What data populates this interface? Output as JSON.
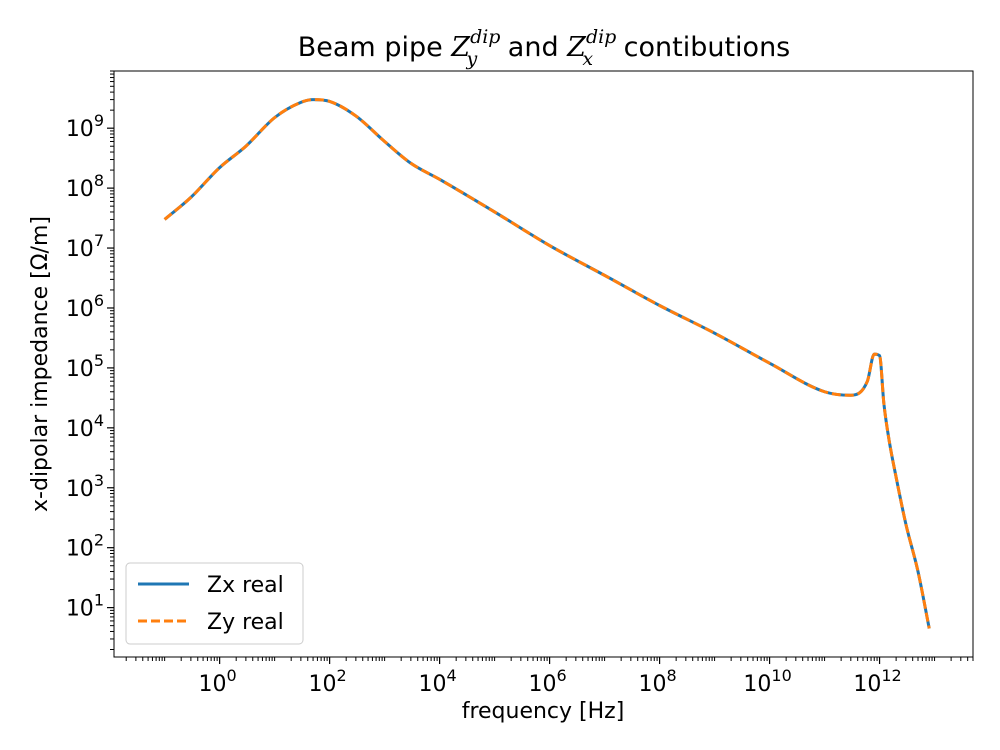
{
  "chart_data": {
    "type": "line",
    "title": {
      "prefix": "Beam pipe ",
      "term1_base": "Z",
      "term1_sup": "dip",
      "term1_sub": "y",
      "middle": " and ",
      "term2_base": "Z",
      "term2_sup": "dip",
      "term2_sub": "x",
      "suffix": " contibutions"
    },
    "xlabel": "frequency [Hz]",
    "ylabel": "x-dipolar impedance [Ω/m]",
    "x_scale": "log",
    "y_scale": "log",
    "xlim": [
      0.012,
      50000000000000.0
    ],
    "ylim": [
      1.5,
      9000000000.0
    ],
    "x_ticks": [
      {
        "base": "10",
        "exp": "0",
        "value": 1
      },
      {
        "base": "10",
        "exp": "2",
        "value": 100
      },
      {
        "base": "10",
        "exp": "4",
        "value": 10000
      },
      {
        "base": "10",
        "exp": "6",
        "value": 1000000
      },
      {
        "base": "10",
        "exp": "8",
        "value": 100000000
      },
      {
        "base": "10",
        "exp": "10",
        "value": 10000000000
      },
      {
        "base": "10",
        "exp": "12",
        "value": 1000000000000
      }
    ],
    "y_ticks": [
      {
        "base": "10",
        "exp": "1",
        "value": 10
      },
      {
        "base": "10",
        "exp": "2",
        "value": 100
      },
      {
        "base": "10",
        "exp": "3",
        "value": 1000
      },
      {
        "base": "10",
        "exp": "4",
        "value": 10000
      },
      {
        "base": "10",
        "exp": "5",
        "value": 100000
      },
      {
        "base": "10",
        "exp": "6",
        "value": 1000000
      },
      {
        "base": "10",
        "exp": "7",
        "value": 10000000
      },
      {
        "base": "10",
        "exp": "8",
        "value": 100000000
      },
      {
        "base": "10",
        "exp": "9",
        "value": 1000000000
      }
    ],
    "grid": false,
    "legend_position": "lower-left",
    "x": [
      0.1,
      0.3,
      1,
      3,
      10,
      30,
      50,
      100,
      300,
      1000,
      3000,
      10000,
      100000,
      1000000,
      10000000,
      100000000,
      1000000000,
      10000000000,
      100000000000,
      300000000000,
      600000000000,
      800000000000,
      1000000000000,
      1200000000000,
      1500000000000,
      2000000000000,
      3000000000000,
      5000000000000,
      8000000000000
    ],
    "series": [
      {
        "name": "Zx real",
        "color": "#1f77b4",
        "style": "solid",
        "values": [
          30000000,
          70000000,
          220000000,
          500000000,
          1500000000,
          2700000000,
          3000000000,
          2800000000,
          1600000000,
          600000000,
          260000000,
          140000000,
          40000000,
          11000000,
          3500000,
          1100000,
          380000,
          120000,
          40000,
          35000,
          60000,
          170000,
          160000,
          25000,
          6000,
          1500,
          250,
          40,
          4.5
        ]
      },
      {
        "name": "Zy real",
        "color": "#ff7f0e",
        "style": "dashed",
        "values": [
          30000000,
          70000000,
          220000000,
          500000000,
          1500000000,
          2700000000,
          3000000000,
          2800000000,
          1600000000,
          600000000,
          260000000,
          140000000,
          40000000,
          11000000,
          3500000,
          1100000,
          380000,
          120000,
          40000,
          35000,
          60000,
          170000,
          160000,
          25000,
          6000,
          1500,
          250,
          40,
          4.5
        ]
      }
    ]
  }
}
